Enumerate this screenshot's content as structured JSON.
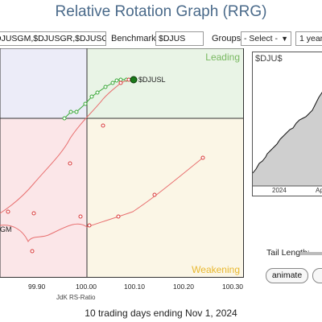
{
  "title": "Relative Rotation Graph (RRG)",
  "toolbar": {
    "symbols_value": "DJUSGM,$DJUSGR,$DJUSGS",
    "benchmark_label": "Benchmark:",
    "benchmark_value": "$DJUS",
    "groups_label": "Groups:",
    "groups_value": "- Select -",
    "period_value": "1 year"
  },
  "quadrants": {
    "leading": "Leading",
    "weakening": "Weakening",
    "colors": {
      "leading_bg": "#e9f4e6",
      "weakening_bg": "#fbf6e6",
      "lagging_bg": "#fbe6e8",
      "improving_bg": "#ececf8",
      "leading_text": "#78b860",
      "weakening_text": "#e8b830"
    }
  },
  "x_axis": {
    "title": "JdK RS-Ratio",
    "ticks": [
      "99.90",
      "100.00",
      "100.10",
      "100.20",
      "100.30"
    ]
  },
  "series_labels": {
    "djusl": "$DJUSL",
    "gm_partial": "GM"
  },
  "mini_chart": {
    "title": "$DJU$",
    "ticks": [
      "2024",
      "Ap"
    ]
  },
  "controls": {
    "tail_label": "Tail Length:",
    "animate_label": "animate"
  },
  "footer": "10 trading days ending Nov 1, 2024",
  "colors": {
    "green_tail": "#3aa838",
    "red_tail": "#e87070",
    "red_point": "#d83a3a"
  }
}
